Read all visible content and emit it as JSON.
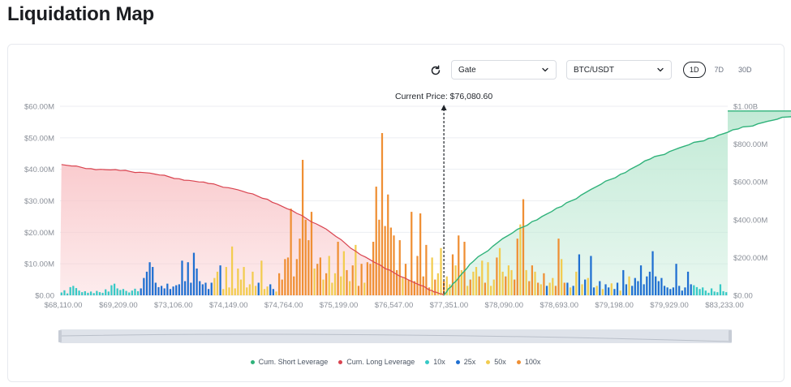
{
  "page": {
    "title": "Liquidation Map"
  },
  "controls": {
    "exchange": "Gate",
    "pair": "BTC/USDT",
    "ranges": [
      "1D",
      "7D",
      "30D"
    ],
    "active_range": "1D"
  },
  "colors": {
    "short_line": "#2fb27a",
    "short_fill": "#bfe9d4",
    "long_line": "#d9434f",
    "long_fill": "#f9c9cc",
    "lev_10x": "#36c9c6",
    "lev_25x": "#1f6fd1",
    "lev_50x": "#f2cc4f",
    "lev_100x": "#ef8f34",
    "grid": "#eceef2",
    "axis_text": "#8a8f98"
  },
  "chart_data": {
    "type": "bar",
    "current_price_label": "Current Price: $76,080.60",
    "x_ticks": [
      "$68,110.00",
      "$69,209.00",
      "$73,106.00",
      "$74,149.00",
      "$74,764.00",
      "$75,199.00",
      "$76,547.00",
      "$77,351.00",
      "$78,090.00",
      "$78,693.00",
      "$79,198.00",
      "$79,929.00",
      "$83,233.00"
    ],
    "y_left_ticks": [
      "$0.00",
      "$10.00M",
      "$20.00M",
      "$30.00M",
      "$40.00M",
      "$50.00M",
      "$60.00M"
    ],
    "y_right_ticks": [
      "$0.00",
      "$200.00M",
      "$400.00M",
      "$600.00M",
      "$800.00M",
      "$1.00B"
    ],
    "ylim_left": [
      0,
      60
    ],
    "ylim_right": [
      0,
      1000
    ],
    "current_price_index": 130,
    "legend": [
      "Cum. Short Leverage",
      "Cum. Long Leverage",
      "10x",
      "25x",
      "50x",
      "100x"
    ],
    "bars": [
      {
        "l": "10x",
        "v": 0.9
      },
      {
        "l": "10x",
        "v": 1.6
      },
      {
        "l": "10x",
        "v": 0.6
      },
      {
        "l": "10x",
        "v": 2.6
      },
      {
        "l": "10x",
        "v": 3.0
      },
      {
        "l": "10x",
        "v": 2.3
      },
      {
        "l": "10x",
        "v": 1.5
      },
      {
        "l": "10x",
        "v": 1.0
      },
      {
        "l": "10x",
        "v": 1.3
      },
      {
        "l": "10x",
        "v": 0.8
      },
      {
        "l": "10x",
        "v": 1.2
      },
      {
        "l": "10x",
        "v": 0.7
      },
      {
        "l": "10x",
        "v": 1.4
      },
      {
        "l": "10x",
        "v": 1.0
      },
      {
        "l": "10x",
        "v": 0.8
      },
      {
        "l": "10x",
        "v": 1.9
      },
      {
        "l": "10x",
        "v": 1.2
      },
      {
        "l": "10x",
        "v": 3.2
      },
      {
        "l": "10x",
        "v": 3.7
      },
      {
        "l": "10x",
        "v": 2.2
      },
      {
        "l": "10x",
        "v": 1.7
      },
      {
        "l": "10x",
        "v": 2.0
      },
      {
        "l": "10x",
        "v": 1.4
      },
      {
        "l": "10x",
        "v": 0.9
      },
      {
        "l": "10x",
        "v": 1.5
      },
      {
        "l": "10x",
        "v": 2.1
      },
      {
        "l": "10x",
        "v": 1.3
      },
      {
        "l": "25x",
        "v": 2.2
      },
      {
        "l": "25x",
        "v": 5.5
      },
      {
        "l": "25x",
        "v": 7.5
      },
      {
        "l": "25x",
        "v": 10.5
      },
      {
        "l": "25x",
        "v": 9.0
      },
      {
        "l": "25x",
        "v": 4.0
      },
      {
        "l": "25x",
        "v": 2.6
      },
      {
        "l": "25x",
        "v": 3.0
      },
      {
        "l": "25x",
        "v": 2.2
      },
      {
        "l": "25x",
        "v": 3.7
      },
      {
        "l": "25x",
        "v": 2.0
      },
      {
        "l": "25x",
        "v": 2.8
      },
      {
        "l": "25x",
        "v": 3.2
      },
      {
        "l": "25x",
        "v": 3.5
      },
      {
        "l": "25x",
        "v": 11.0
      },
      {
        "l": "25x",
        "v": 4.5
      },
      {
        "l": "25x",
        "v": 10.5
      },
      {
        "l": "25x",
        "v": 4.0
      },
      {
        "l": "25x",
        "v": 13.5
      },
      {
        "l": "25x",
        "v": 8.5
      },
      {
        "l": "25x",
        "v": 4.5
      },
      {
        "l": "25x",
        "v": 3.5
      },
      {
        "l": "25x",
        "v": 4.0
      },
      {
        "l": "25x",
        "v": 2.0
      },
      {
        "l": "25x",
        "v": 4.0
      },
      {
        "l": "50x",
        "v": 5.5
      },
      {
        "l": "50x",
        "v": 7.5
      },
      {
        "l": "25x",
        "v": 9.5
      },
      {
        "l": "50x",
        "v": 2.0
      },
      {
        "l": "50x",
        "v": 9.0
      },
      {
        "l": "50x",
        "v": 2.5
      },
      {
        "l": "50x",
        "v": 15.5
      },
      {
        "l": "50x",
        "v": 2.2
      },
      {
        "l": "50x",
        "v": 8.5
      },
      {
        "l": "50x",
        "v": 5.0
      },
      {
        "l": "50x",
        "v": 9.0
      },
      {
        "l": "50x",
        "v": 2.5
      },
      {
        "l": "50x",
        "v": 3.5
      },
      {
        "l": "50x",
        "v": 7.5
      },
      {
        "l": "50x",
        "v": 3.0
      },
      {
        "l": "25x",
        "v": 4.0
      },
      {
        "l": "50x",
        "v": 11.0
      },
      {
        "l": "50x",
        "v": 2.0
      },
      {
        "l": "50x",
        "v": 2.8
      },
      {
        "l": "25x",
        "v": 3.5
      },
      {
        "l": "25x",
        "v": 2.0
      },
      {
        "l": "50x",
        "v": 1.2
      },
      {
        "l": "100x",
        "v": 7.0
      },
      {
        "l": "100x",
        "v": 5.0
      },
      {
        "l": "100x",
        "v": 11.5
      },
      {
        "l": "100x",
        "v": 12.0
      },
      {
        "l": "100x",
        "v": 27.5
      },
      {
        "l": "100x",
        "v": 6.0
      },
      {
        "l": "100x",
        "v": 11.5
      },
      {
        "l": "100x",
        "v": 18.0
      },
      {
        "l": "100x",
        "v": 43.0
      },
      {
        "l": "100x",
        "v": 24.0
      },
      {
        "l": "100x",
        "v": 17.5
      },
      {
        "l": "100x",
        "v": 26.5
      },
      {
        "l": "50x",
        "v": 8.5
      },
      {
        "l": "100x",
        "v": 10.0
      },
      {
        "l": "100x",
        "v": 12.0
      },
      {
        "l": "50x",
        "v": 5.0
      },
      {
        "l": "100x",
        "v": 7.0
      },
      {
        "l": "50x",
        "v": 12.5
      },
      {
        "l": "50x",
        "v": 4.0
      },
      {
        "l": "50x",
        "v": 7.0
      },
      {
        "l": "100x",
        "v": 17.0
      },
      {
        "l": "50x",
        "v": 6.0
      },
      {
        "l": "50x",
        "v": 14.0
      },
      {
        "l": "100x",
        "v": 8.0
      },
      {
        "l": "50x",
        "v": 4.5
      },
      {
        "l": "100x",
        "v": 9.5
      },
      {
        "l": "50x",
        "v": 16.0
      },
      {
        "l": "100x",
        "v": 3.0
      },
      {
        "l": "100x",
        "v": 10.0
      },
      {
        "l": "50x",
        "v": 4.0
      },
      {
        "l": "100x",
        "v": 10.5
      },
      {
        "l": "100x",
        "v": 10.0
      },
      {
        "l": "100x",
        "v": 17.0
      },
      {
        "l": "100x",
        "v": 34.5
      },
      {
        "l": "100x",
        "v": 24.0
      },
      {
        "l": "100x",
        "v": 51.5
      },
      {
        "l": "100x",
        "v": 22.0
      },
      {
        "l": "100x",
        "v": 32.0
      },
      {
        "l": "100x",
        "v": 21.5
      },
      {
        "l": "100x",
        "v": 19.0
      },
      {
        "l": "100x",
        "v": 8.0
      },
      {
        "l": "100x",
        "v": 17.5
      },
      {
        "l": "50x",
        "v": 5.5
      },
      {
        "l": "100x",
        "v": 10.0
      },
      {
        "l": "100x",
        "v": 5.0
      },
      {
        "l": "100x",
        "v": 26.5
      },
      {
        "l": "100x",
        "v": 4.5
      },
      {
        "l": "100x",
        "v": 12.5
      },
      {
        "l": "100x",
        "v": 26.0
      },
      {
        "l": "100x",
        "v": 6.0
      },
      {
        "l": "100x",
        "v": 16.0
      },
      {
        "l": "100x",
        "v": 2.5
      },
      {
        "l": "50x",
        "v": 12.0
      },
      {
        "l": "100x",
        "v": 5.0
      },
      {
        "l": "50x",
        "v": 7.0
      },
      {
        "l": "50x",
        "v": 15.0
      },
      {
        "l": "100x",
        "v": 4.5
      },
      {
        "l": "50x",
        "v": 6.0
      },
      {
        "l": "50x",
        "v": 3.5
      },
      {
        "l": "100x",
        "v": 13.0
      },
      {
        "l": "50x",
        "v": 9.5
      },
      {
        "l": "100x",
        "v": 19.0
      },
      {
        "l": "50x",
        "v": 8.0
      },
      {
        "l": "100x",
        "v": 17.0
      },
      {
        "l": "50x",
        "v": 3.0
      },
      {
        "l": "100x",
        "v": 5.0
      },
      {
        "l": "50x",
        "v": 7.5
      },
      {
        "l": "50x",
        "v": 9.0
      },
      {
        "l": "100x",
        "v": 6.0
      },
      {
        "l": "50x",
        "v": 11.0
      },
      {
        "l": "100x",
        "v": 4.0
      },
      {
        "l": "50x",
        "v": 10.5
      },
      {
        "l": "50x",
        "v": 3.0
      },
      {
        "l": "50x",
        "v": 5.0
      },
      {
        "l": "100x",
        "v": 12.0
      },
      {
        "l": "50x",
        "v": 15.0
      },
      {
        "l": "50x",
        "v": 7.5
      },
      {
        "l": "100x",
        "v": 6.0
      },
      {
        "l": "50x",
        "v": 9.5
      },
      {
        "l": "50x",
        "v": 8.0
      },
      {
        "l": "100x",
        "v": 5.0
      },
      {
        "l": "100x",
        "v": 18.0
      },
      {
        "l": "50x",
        "v": 22.5
      },
      {
        "l": "100x",
        "v": 30.5
      },
      {
        "l": "50x",
        "v": 8.0
      },
      {
        "l": "100x",
        "v": 4.5
      },
      {
        "l": "100x",
        "v": 9.5
      },
      {
        "l": "50x",
        "v": 7.5
      },
      {
        "l": "100x",
        "v": 4.0
      },
      {
        "l": "50x",
        "v": 3.5
      },
      {
        "l": "100x",
        "v": 7.0
      },
      {
        "l": "25x",
        "v": 3.0
      },
      {
        "l": "50x",
        "v": 4.0
      },
      {
        "l": "50x",
        "v": 5.5
      },
      {
        "l": "100x",
        "v": 3.0
      },
      {
        "l": "100x",
        "v": 18.0
      },
      {
        "l": "50x",
        "v": 11.5
      },
      {
        "l": "100x",
        "v": 4.0
      },
      {
        "l": "25x",
        "v": 4.0
      },
      {
        "l": "50x",
        "v": 2.5
      },
      {
        "l": "25x",
        "v": 3.0
      },
      {
        "l": "50x",
        "v": 7.5
      },
      {
        "l": "25x",
        "v": 13.0
      },
      {
        "l": "50x",
        "v": 3.5
      },
      {
        "l": "25x",
        "v": 5.0
      },
      {
        "l": "50x",
        "v": 5.5
      },
      {
        "l": "25x",
        "v": 12.5
      },
      {
        "l": "25x",
        "v": 2.5
      },
      {
        "l": "50x",
        "v": 3.0
      },
      {
        "l": "25x",
        "v": 4.5
      },
      {
        "l": "50x",
        "v": 2.0
      },
      {
        "l": "25x",
        "v": 3.5
      },
      {
        "l": "25x",
        "v": 2.5
      },
      {
        "l": "50x",
        "v": 3.8
      },
      {
        "l": "25x",
        "v": 2.0
      },
      {
        "l": "25x",
        "v": 4.0
      },
      {
        "l": "50x",
        "v": 1.5
      },
      {
        "l": "25x",
        "v": 8.0
      },
      {
        "l": "25x",
        "v": 3.5
      },
      {
        "l": "50x",
        "v": 6.0
      },
      {
        "l": "25x",
        "v": 3.0
      },
      {
        "l": "25x",
        "v": 5.5
      },
      {
        "l": "25x",
        "v": 4.5
      },
      {
        "l": "25x",
        "v": 9.5
      },
      {
        "l": "25x",
        "v": 3.5
      },
      {
        "l": "25x",
        "v": 6.0
      },
      {
        "l": "25x",
        "v": 7.5
      },
      {
        "l": "25x",
        "v": 14.0
      },
      {
        "l": "25x",
        "v": 6.0
      },
      {
        "l": "25x",
        "v": 4.5
      },
      {
        "l": "25x",
        "v": 5.5
      },
      {
        "l": "25x",
        "v": 3.0
      },
      {
        "l": "25x",
        "v": 2.5
      },
      {
        "l": "25x",
        "v": 2.0
      },
      {
        "l": "25x",
        "v": 2.5
      },
      {
        "l": "25x",
        "v": 10.0
      },
      {
        "l": "25x",
        "v": 3.0
      },
      {
        "l": "25x",
        "v": 1.5
      },
      {
        "l": "25x",
        "v": 2.5
      },
      {
        "l": "25x",
        "v": 7.5
      },
      {
        "l": "25x",
        "v": 3.5
      },
      {
        "l": "10x",
        "v": 3.2
      },
      {
        "l": "10x",
        "v": 2.6
      },
      {
        "l": "10x",
        "v": 2.0
      },
      {
        "l": "10x",
        "v": 2.5
      },
      {
        "l": "10x",
        "v": 1.5
      },
      {
        "l": "10x",
        "v": 0.8
      },
      {
        "l": "10x",
        "v": 2.2
      },
      {
        "l": "10x",
        "v": 1.2
      },
      {
        "l": "10x",
        "v": 1.0
      },
      {
        "l": "10x",
        "v": 3.5
      },
      {
        "l": "10x",
        "v": 1.3
      },
      {
        "l": "10x",
        "v": 1.0
      }
    ],
    "cum_long": [
      {
        "i": 0,
        "v": 41.5
      },
      {
        "i": 10,
        "v": 40.2
      },
      {
        "i": 20,
        "v": 39.6
      },
      {
        "i": 30,
        "v": 38.8
      },
      {
        "i": 40,
        "v": 37.0
      },
      {
        "i": 50,
        "v": 35.5
      },
      {
        "i": 60,
        "v": 33.5
      },
      {
        "i": 70,
        "v": 30.5
      },
      {
        "i": 80,
        "v": 26.0
      },
      {
        "i": 90,
        "v": 21.0
      },
      {
        "i": 100,
        "v": 14.0
      },
      {
        "i": 110,
        "v": 8.5
      },
      {
        "i": 120,
        "v": 4.0
      },
      {
        "i": 126,
        "v": 1.5
      },
      {
        "i": 130,
        "v": 0
      }
    ],
    "cum_short": [
      {
        "i": 130,
        "v": 0
      },
      {
        "i": 133,
        "v": 60
      },
      {
        "i": 140,
        "v": 180
      },
      {
        "i": 150,
        "v": 300
      },
      {
        "i": 160,
        "v": 390
      },
      {
        "i": 170,
        "v": 470
      },
      {
        "i": 180,
        "v": 560
      },
      {
        "i": 190,
        "v": 640
      },
      {
        "i": 200,
        "v": 720
      },
      {
        "i": 210,
        "v": 780
      },
      {
        "i": 220,
        "v": 830
      },
      {
        "i": 230,
        "v": 880
      },
      {
        "i": 240,
        "v": 920
      },
      {
        "i": 250,
        "v": 955
      },
      {
        "i": 261,
        "v": 975
      }
    ]
  }
}
